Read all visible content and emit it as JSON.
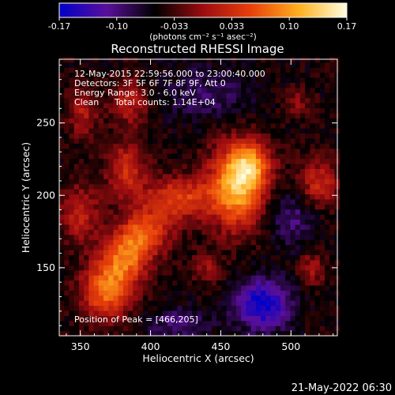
{
  "chart_data": {
    "type": "heatmap",
    "title": "Reconstructed RHESSI Image",
    "xlabel": "Heliocentric X (arcsec)",
    "ylabel": "Heliocentric Y (arcsec)",
    "xlim": [
      335,
      533
    ],
    "ylim": [
      103,
      294
    ],
    "x_ticks": [
      350,
      400,
      450,
      500
    ],
    "y_ticks": [
      150,
      200,
      250
    ],
    "colorbar": {
      "range": [
        -0.17,
        0.17
      ],
      "ticks": [
        "-0.17",
        "-0.10",
        "-0.033",
        "0.033",
        "0.10",
        "0.17"
      ],
      "unit_label": "(photons cm⁻² s⁻¹ asec⁻²)",
      "colors": [
        "#0000c8",
        "#5a0f9a",
        "#000000",
        "#9c0c10",
        "#e8400a",
        "#ffb020",
        "#ffffe0"
      ]
    },
    "annotations": {
      "time_range": "12-May-2015 22:59:56.000 to 23:00:40.000",
      "detectors": "Detectors: 3F 5F 6F 7F 8F 9F, Att 0",
      "energy": "Energy Range: 3.0 - 6.0 keV",
      "method": "Clean",
      "counts": "Total counts: 1.14E+04",
      "peak": "Position of Peak = [466,205]"
    },
    "peak": [
      466,
      205
    ],
    "sources": [
      {
        "x": 462,
        "y": 207,
        "amp": 0.17,
        "sx": 14,
        "sy": 20
      },
      {
        "x": 472,
        "y": 222,
        "amp": 0.09,
        "sx": 10,
        "sy": 10
      },
      {
        "x": 420,
        "y": 198,
        "amp": 0.1,
        "sx": 17,
        "sy": 10
      },
      {
        "x": 398,
        "y": 175,
        "amp": 0.1,
        "sx": 12,
        "sy": 11
      },
      {
        "x": 383,
        "y": 158,
        "amp": 0.12,
        "sx": 11,
        "sy": 13
      },
      {
        "x": 368,
        "y": 135,
        "amp": 0.13,
        "sx": 12,
        "sy": 14
      },
      {
        "x": 383,
        "y": 218,
        "amp": 0.08,
        "sx": 10,
        "sy": 14
      },
      {
        "x": 385,
        "y": 265,
        "amp": 0.07,
        "sx": 9,
        "sy": 11
      },
      {
        "x": 350,
        "y": 188,
        "amp": 0.07,
        "sx": 10,
        "sy": 14
      },
      {
        "x": 352,
        "y": 258,
        "amp": 0.06,
        "sx": 8,
        "sy": 12
      },
      {
        "x": 520,
        "y": 208,
        "amp": 0.08,
        "sx": 10,
        "sy": 12
      },
      {
        "x": 515,
        "y": 150,
        "amp": 0.05,
        "sx": 7,
        "sy": 9
      },
      {
        "x": 505,
        "y": 265,
        "amp": 0.04,
        "sx": 7,
        "sy": 7
      },
      {
        "x": 440,
        "y": 150,
        "amp": 0.045,
        "sx": 8,
        "sy": 8
      },
      {
        "x": 480,
        "y": 125,
        "amp": -0.12,
        "sx": 14,
        "sy": 12
      },
      {
        "x": 500,
        "y": 185,
        "amp": -0.05,
        "sx": 14,
        "sy": 14
      },
      {
        "x": 420,
        "y": 112,
        "amp": -0.05,
        "sx": 15,
        "sy": 8
      },
      {
        "x": 440,
        "y": 270,
        "amp": -0.04,
        "sx": 22,
        "sy": 14
      }
    ],
    "background": -0.05
  },
  "footer": {
    "timestamp": "21-May-2022 06:30"
  }
}
